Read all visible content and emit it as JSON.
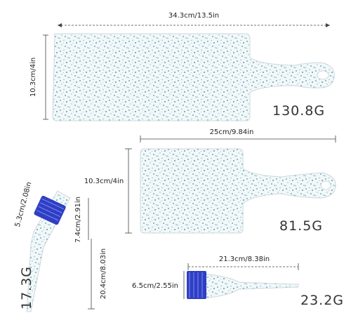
{
  "items": [
    {
      "width_label": "34.3cm/13.5in",
      "height_label": "10.3cm/4in",
      "weight": "130.8G"
    },
    {
      "width_label": "25cm/9.84in",
      "height_label": "10.3cm/4in",
      "weight": "81.5G"
    },
    {
      "head_label": "5.3cm/2.08in",
      "head_length_label": "7.4cm/2.91in",
      "length_label": "20.4cm/8.03in",
      "weight": "17.3G"
    },
    {
      "length_label": "21.3cm/8.38in",
      "head_label": "6.5cm/2.55in",
      "weight": "23.2G"
    }
  ]
}
